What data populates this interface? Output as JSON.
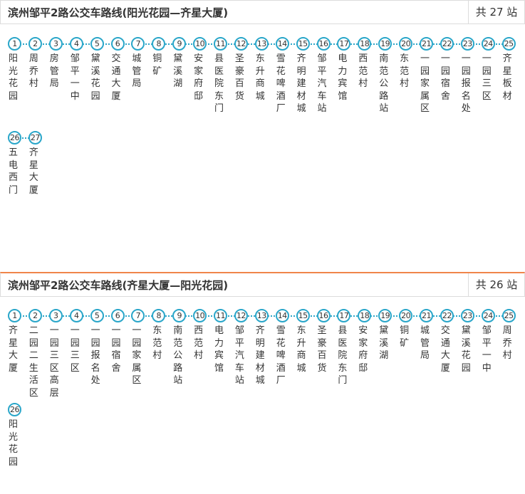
{
  "sections": [
    {
      "title": "滨州邹平2路公交车路线(阳光花园—齐星大厦)",
      "count": "共 27 站",
      "stops": [
        {
          "num": 1,
          "name": "阳光花园"
        },
        {
          "num": 2,
          "name": "周乔村"
        },
        {
          "num": 3,
          "name": "房管局"
        },
        {
          "num": 4,
          "name": "邹平一中"
        },
        {
          "num": 5,
          "name": "黛溪花园"
        },
        {
          "num": 6,
          "name": "交通大厦"
        },
        {
          "num": 7,
          "name": "城管局"
        },
        {
          "num": 8,
          "name": "铜矿"
        },
        {
          "num": 9,
          "name": "黛溪湖"
        },
        {
          "num": 10,
          "name": "安家府邸"
        },
        {
          "num": 11,
          "name": "县医院东门"
        },
        {
          "num": 12,
          "name": "圣豪百货"
        },
        {
          "num": 13,
          "name": "东升商城"
        },
        {
          "num": 14,
          "name": "雪花啤酒厂"
        },
        {
          "num": 15,
          "name": "齐明建材城"
        },
        {
          "num": 16,
          "name": "邹平汽车站"
        },
        {
          "num": 17,
          "name": "电力宾馆"
        },
        {
          "num": 18,
          "name": "西范村"
        },
        {
          "num": 19,
          "name": "南范公路站"
        },
        {
          "num": 20,
          "name": "东范村"
        },
        {
          "num": 21,
          "name": "一园家属区"
        },
        {
          "num": 22,
          "name": "一园宿舍"
        },
        {
          "num": 23,
          "name": "一园报名处"
        },
        {
          "num": 24,
          "name": "一园三区"
        },
        {
          "num": 25,
          "name": "齐星板材"
        },
        {
          "num": 26,
          "name": "五电西门"
        },
        {
          "num": 27,
          "name": "齐星大厦"
        }
      ]
    },
    {
      "title": "滨州邹平2路公交车路线(齐星大厦—阳光花园)",
      "count": "共 26 站",
      "stops": [
        {
          "num": 1,
          "name": "齐星大厦"
        },
        {
          "num": 2,
          "name": "二园二生活区"
        },
        {
          "num": 3,
          "name": "一园三区高层"
        },
        {
          "num": 4,
          "name": "一园三区"
        },
        {
          "num": 5,
          "name": "一园报名处"
        },
        {
          "num": 6,
          "name": "一园宿舍"
        },
        {
          "num": 7,
          "name": "一园家属区"
        },
        {
          "num": 8,
          "name": "东范村"
        },
        {
          "num": 9,
          "name": "南范公路站"
        },
        {
          "num": 10,
          "name": "西范村"
        },
        {
          "num": 11,
          "name": "电力宾馆"
        },
        {
          "num": 12,
          "name": "邹平汽车站"
        },
        {
          "num": 13,
          "name": "齐明建材城"
        },
        {
          "num": 14,
          "name": "雪花啤酒厂"
        },
        {
          "num": 15,
          "name": "东升商城"
        },
        {
          "num": 16,
          "name": "圣豪百货"
        },
        {
          "num": 17,
          "name": "县医院东门"
        },
        {
          "num": 18,
          "name": "安家府邸"
        },
        {
          "num": 19,
          "name": "黛溪湖"
        },
        {
          "num": 20,
          "name": "铜矿"
        },
        {
          "num": 21,
          "name": "城管局"
        },
        {
          "num": 22,
          "name": "交通大厦"
        },
        {
          "num": 23,
          "name": "黛溪花园"
        },
        {
          "num": 24,
          "name": "邹平一中"
        },
        {
          "num": 25,
          "name": "周乔村"
        },
        {
          "num": 26,
          "name": "阳光花园"
        }
      ]
    }
  ]
}
